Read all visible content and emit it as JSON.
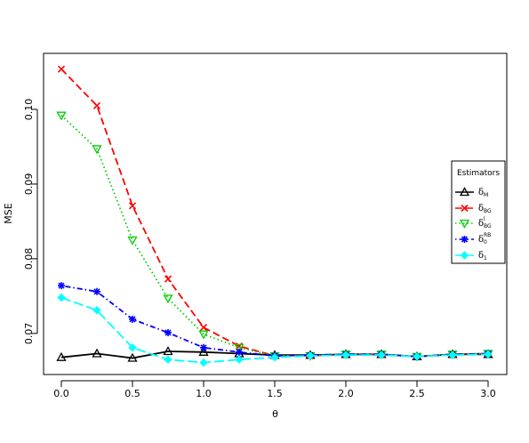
{
  "chart_data": {
    "type": "line",
    "title": "",
    "xlabel": "θ",
    "ylabel": "MSE",
    "xlim": [
      0,
      3
    ],
    "ylim": [
      0.0645,
      0.1075
    ],
    "xticks": [
      "0.0",
      "0.5",
      "1.0",
      "1.5",
      "2.0",
      "2.5",
      "3.0"
    ],
    "xtick_values": [
      0,
      0.5,
      1.0,
      1.5,
      2.0,
      2.5,
      3.0
    ],
    "yticks": [
      "0.07",
      "0.08",
      "0.09",
      "0.10"
    ],
    "ytick_values": [
      0.07,
      0.08,
      0.09,
      0.1
    ],
    "grid": false,
    "legend": {
      "title": "Estimators",
      "position": "right"
    },
    "x": [
      0,
      0.25,
      0.5,
      0.75,
      1.0,
      1.25,
      1.5,
      1.75,
      2.0,
      2.25,
      2.5,
      2.75,
      3.0
    ],
    "series": [
      {
        "name": "δM",
        "label_main": "δ",
        "label_sub": "M",
        "label_sup": "",
        "color": "#000000",
        "dash": "solid",
        "marker": "triangle",
        "values": [
          0.0668,
          0.0673,
          0.0667,
          0.0676,
          0.0675,
          0.0673,
          0.0671,
          0.0671,
          0.0672,
          0.0672,
          0.0669,
          0.0672,
          0.0672
        ]
      },
      {
        "name": "δBG",
        "label_main": "δ",
        "label_sub": "BG",
        "label_sup": "",
        "color": "#ff0000",
        "dash": "dashed",
        "marker": "cross",
        "values": [
          0.1054,
          0.1005,
          0.0871,
          0.0773,
          0.0708,
          0.0683,
          0.067,
          0.067,
          0.0672,
          0.0672,
          0.0669,
          0.0672,
          0.0673
        ]
      },
      {
        "name": "δlBG",
        "label_main": "δ",
        "label_sub": "BG",
        "label_sup": "l",
        "color": "#00cd00",
        "dash": "dotted",
        "marker": "triangle-down",
        "values": [
          0.0992,
          0.0947,
          0.0825,
          0.0747,
          0.0699,
          0.0681,
          0.067,
          0.067,
          0.0672,
          0.0672,
          0.0669,
          0.0672,
          0.0673
        ]
      },
      {
        "name": "δRB0",
        "label_main": "δ",
        "label_sub": "0",
        "label_sup": "RB",
        "color": "#0000ff",
        "dash": "dotdash",
        "marker": "asterisk",
        "values": [
          0.0764,
          0.0756,
          0.0719,
          0.0701,
          0.0681,
          0.0675,
          0.067,
          0.0671,
          0.0672,
          0.0672,
          0.0669,
          0.0672,
          0.0673
        ]
      },
      {
        "name": "δ1",
        "label_main": "δ",
        "label_sub": "1",
        "label_sup": "",
        "color": "#00ffff",
        "dash": "longdash",
        "marker": "diamond",
        "values": [
          0.0748,
          0.0731,
          0.0681,
          0.0665,
          0.0661,
          0.0665,
          0.0668,
          0.067,
          0.0671,
          0.0671,
          0.0669,
          0.0671,
          0.0672
        ]
      }
    ]
  }
}
